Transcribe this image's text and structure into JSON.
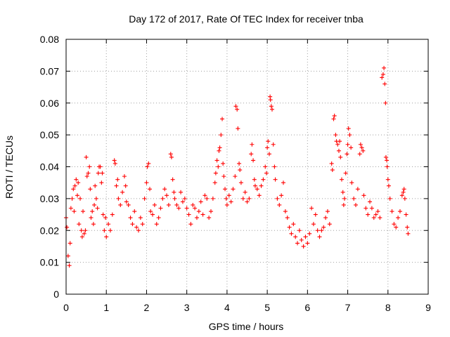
{
  "colors": {
    "series": "#ff0000",
    "grid": "#a0a0a0",
    "axis": "#000000",
    "background": "#ffffff"
  },
  "chart_data": {
    "type": "scatter",
    "title": "Day 172 of 2017, Rate Of TEC Index for receiver tnba",
    "xlabel": "GPS time / hours",
    "ylabel": "ROTI / TECUs",
    "xlim": [
      0,
      9
    ],
    "ylim": [
      0,
      0.08
    ],
    "xticks": [
      "0",
      "1",
      "2",
      "3",
      "4",
      "5",
      "6",
      "7",
      "8",
      "9"
    ],
    "xtick_values": [
      0,
      1,
      2,
      3,
      4,
      5,
      6,
      7,
      8,
      9
    ],
    "yticks": [
      "0",
      "0.01",
      "0.02",
      "0.03",
      "0.04",
      "0.05",
      "0.06",
      "0.07",
      "0.08"
    ],
    "ytick_values": [
      0,
      0.01,
      0.02,
      0.03,
      0.04,
      0.05,
      0.06,
      0.07,
      0.08
    ],
    "grid": true,
    "marker": "plus",
    "series": [
      {
        "name": "ROTI",
        "points": [
          [
            0.0,
            0.024
          ],
          [
            0.02,
            0.021
          ],
          [
            0.05,
            0.012
          ],
          [
            0.08,
            0.009
          ],
          [
            0.1,
            0.016
          ],
          [
            0.12,
            0.027
          ],
          [
            0.15,
            0.03
          ],
          [
            0.18,
            0.033
          ],
          [
            0.2,
            0.026
          ],
          [
            0.22,
            0.034
          ],
          [
            0.25,
            0.036
          ],
          [
            0.28,
            0.031
          ],
          [
            0.3,
            0.035
          ],
          [
            0.32,
            0.022
          ],
          [
            0.35,
            0.03
          ],
          [
            0.38,
            0.02
          ],
          [
            0.4,
            0.018
          ],
          [
            0.42,
            0.026
          ],
          [
            0.45,
            0.019
          ],
          [
            0.48,
            0.02
          ],
          [
            0.5,
            0.043
          ],
          [
            0.52,
            0.037
          ],
          [
            0.55,
            0.038
          ],
          [
            0.58,
            0.04
          ],
          [
            0.6,
            0.033
          ],
          [
            0.62,
            0.024
          ],
          [
            0.65,
            0.026
          ],
          [
            0.68,
            0.022
          ],
          [
            0.7,
            0.028
          ],
          [
            0.72,
            0.034
          ],
          [
            0.75,
            0.03
          ],
          [
            0.78,
            0.027
          ],
          [
            0.8,
            0.038
          ],
          [
            0.82,
            0.04
          ],
          [
            0.85,
            0.04
          ],
          [
            0.88,
            0.035
          ],
          [
            0.9,
            0.038
          ],
          [
            0.92,
            0.025
          ],
          [
            0.95,
            0.02
          ],
          [
            0.98,
            0.024
          ],
          [
            1.0,
            0.018
          ],
          [
            1.05,
            0.022
          ],
          [
            1.1,
            0.02
          ],
          [
            1.15,
            0.025
          ],
          [
            1.2,
            0.042
          ],
          [
            1.22,
            0.041
          ],
          [
            1.25,
            0.034
          ],
          [
            1.28,
            0.036
          ],
          [
            1.3,
            0.03
          ],
          [
            1.35,
            0.028
          ],
          [
            1.4,
            0.032
          ],
          [
            1.45,
            0.037
          ],
          [
            1.48,
            0.034
          ],
          [
            1.5,
            0.029
          ],
          [
            1.55,
            0.028
          ],
          [
            1.6,
            0.024
          ],
          [
            1.65,
            0.022
          ],
          [
            1.7,
            0.026
          ],
          [
            1.75,
            0.021
          ],
          [
            1.8,
            0.02
          ],
          [
            1.85,
            0.024
          ],
          [
            1.9,
            0.022
          ],
          [
            1.95,
            0.03
          ],
          [
            2.0,
            0.035
          ],
          [
            2.02,
            0.04
          ],
          [
            2.05,
            0.041
          ],
          [
            2.08,
            0.033
          ],
          [
            2.1,
            0.026
          ],
          [
            2.15,
            0.025
          ],
          [
            2.2,
            0.028
          ],
          [
            2.25,
            0.022
          ],
          [
            2.3,
            0.024
          ],
          [
            2.35,
            0.027
          ],
          [
            2.4,
            0.03
          ],
          [
            2.45,
            0.033
          ],
          [
            2.5,
            0.031
          ],
          [
            2.55,
            0.028
          ],
          [
            2.6,
            0.044
          ],
          [
            2.62,
            0.043
          ],
          [
            2.65,
            0.036
          ],
          [
            2.68,
            0.032
          ],
          [
            2.7,
            0.03
          ],
          [
            2.75,
            0.028
          ],
          [
            2.8,
            0.027
          ],
          [
            2.85,
            0.032
          ],
          [
            2.9,
            0.029
          ],
          [
            2.95,
            0.03
          ],
          [
            3.0,
            0.027
          ],
          [
            3.05,
            0.025
          ],
          [
            3.1,
            0.022
          ],
          [
            3.15,
            0.028
          ],
          [
            3.2,
            0.027
          ],
          [
            3.25,
            0.024
          ],
          [
            3.3,
            0.026
          ],
          [
            3.35,
            0.029
          ],
          [
            3.4,
            0.025
          ],
          [
            3.45,
            0.031
          ],
          [
            3.5,
            0.03
          ],
          [
            3.55,
            0.024
          ],
          [
            3.6,
            0.026
          ],
          [
            3.65,
            0.03
          ],
          [
            3.7,
            0.035
          ],
          [
            3.72,
            0.038
          ],
          [
            3.75,
            0.042
          ],
          [
            3.78,
            0.04
          ],
          [
            3.8,
            0.045
          ],
          [
            3.82,
            0.046
          ],
          [
            3.85,
            0.05
          ],
          [
            3.88,
            0.055
          ],
          [
            3.9,
            0.041
          ],
          [
            3.92,
            0.037
          ],
          [
            3.95,
            0.033
          ],
          [
            3.98,
            0.03
          ],
          [
            4.0,
            0.028
          ],
          [
            4.05,
            0.031
          ],
          [
            4.1,
            0.029
          ],
          [
            4.15,
            0.033
          ],
          [
            4.2,
            0.037
          ],
          [
            4.22,
            0.059
          ],
          [
            4.25,
            0.058
          ],
          [
            4.27,
            0.052
          ],
          [
            4.3,
            0.041
          ],
          [
            4.32,
            0.039
          ],
          [
            4.35,
            0.035
          ],
          [
            4.4,
            0.03
          ],
          [
            4.45,
            0.032
          ],
          [
            4.5,
            0.029
          ],
          [
            4.55,
            0.03
          ],
          [
            4.6,
            0.044
          ],
          [
            4.62,
            0.047
          ],
          [
            4.65,
            0.042
          ],
          [
            4.68,
            0.036
          ],
          [
            4.7,
            0.034
          ],
          [
            4.75,
            0.033
          ],
          [
            4.8,
            0.031
          ],
          [
            4.85,
            0.034
          ],
          [
            4.9,
            0.036
          ],
          [
            4.95,
            0.04
          ],
          [
            4.98,
            0.038
          ],
          [
            5.0,
            0.046
          ],
          [
            5.02,
            0.048
          ],
          [
            5.05,
            0.044
          ],
          [
            5.07,
            0.062
          ],
          [
            5.08,
            0.061
          ],
          [
            5.1,
            0.059
          ],
          [
            5.12,
            0.058
          ],
          [
            5.15,
            0.047
          ],
          [
            5.18,
            0.04
          ],
          [
            5.2,
            0.036
          ],
          [
            5.25,
            0.03
          ],
          [
            5.3,
            0.028
          ],
          [
            5.35,
            0.031
          ],
          [
            5.4,
            0.035
          ],
          [
            5.45,
            0.026
          ],
          [
            5.5,
            0.024
          ],
          [
            5.55,
            0.021
          ],
          [
            5.6,
            0.019
          ],
          [
            5.65,
            0.022
          ],
          [
            5.7,
            0.018
          ],
          [
            5.75,
            0.016
          ],
          [
            5.8,
            0.02
          ],
          [
            5.85,
            0.017
          ],
          [
            5.9,
            0.015
          ],
          [
            5.95,
            0.018
          ],
          [
            6.0,
            0.016
          ],
          [
            6.05,
            0.019
          ],
          [
            6.1,
            0.027
          ],
          [
            6.15,
            0.022
          ],
          [
            6.2,
            0.025
          ],
          [
            6.25,
            0.02
          ],
          [
            6.3,
            0.018
          ],
          [
            6.35,
            0.02
          ],
          [
            6.4,
            0.021
          ],
          [
            6.45,
            0.024
          ],
          [
            6.5,
            0.026
          ],
          [
            6.55,
            0.022
          ],
          [
            6.6,
            0.041
          ],
          [
            6.62,
            0.039
          ],
          [
            6.65,
            0.055
          ],
          [
            6.67,
            0.056
          ],
          [
            6.7,
            0.05
          ],
          [
            6.72,
            0.048
          ],
          [
            6.75,
            0.047
          ],
          [
            6.78,
            0.045
          ],
          [
            6.8,
            0.048
          ],
          [
            6.82,
            0.043
          ],
          [
            6.85,
            0.036
          ],
          [
            6.88,
            0.032
          ],
          [
            6.9,
            0.028
          ],
          [
            6.92,
            0.03
          ],
          [
            6.95,
            0.038
          ],
          [
            6.98,
            0.044
          ],
          [
            7.0,
            0.047
          ],
          [
            7.02,
            0.052
          ],
          [
            7.05,
            0.05
          ],
          [
            7.08,
            0.046
          ],
          [
            7.1,
            0.035
          ],
          [
            7.15,
            0.03
          ],
          [
            7.2,
            0.028
          ],
          [
            7.25,
            0.033
          ],
          [
            7.3,
            0.044
          ],
          [
            7.32,
            0.047
          ],
          [
            7.35,
            0.046
          ],
          [
            7.38,
            0.045
          ],
          [
            7.4,
            0.031
          ],
          [
            7.45,
            0.027
          ],
          [
            7.5,
            0.025
          ],
          [
            7.55,
            0.029
          ],
          [
            7.6,
            0.027
          ],
          [
            7.65,
            0.024
          ],
          [
            7.7,
            0.025
          ],
          [
            7.75,
            0.026
          ],
          [
            7.8,
            0.024
          ],
          [
            7.85,
            0.068
          ],
          [
            7.88,
            0.069
          ],
          [
            7.9,
            0.071
          ],
          [
            7.92,
            0.066
          ],
          [
            7.94,
            0.06
          ],
          [
            7.95,
            0.043
          ],
          [
            7.97,
            0.042
          ],
          [
            7.98,
            0.04
          ],
          [
            8.0,
            0.036
          ],
          [
            8.02,
            0.034
          ],
          [
            8.05,
            0.03
          ],
          [
            8.1,
            0.026
          ],
          [
            8.15,
            0.022
          ],
          [
            8.2,
            0.021
          ],
          [
            8.25,
            0.024
          ],
          [
            8.3,
            0.026
          ],
          [
            8.35,
            0.031
          ],
          [
            8.38,
            0.032
          ],
          [
            8.4,
            0.033
          ],
          [
            8.42,
            0.03
          ],
          [
            8.45,
            0.025
          ],
          [
            8.48,
            0.021
          ],
          [
            8.5,
            0.019
          ]
        ]
      }
    ]
  }
}
